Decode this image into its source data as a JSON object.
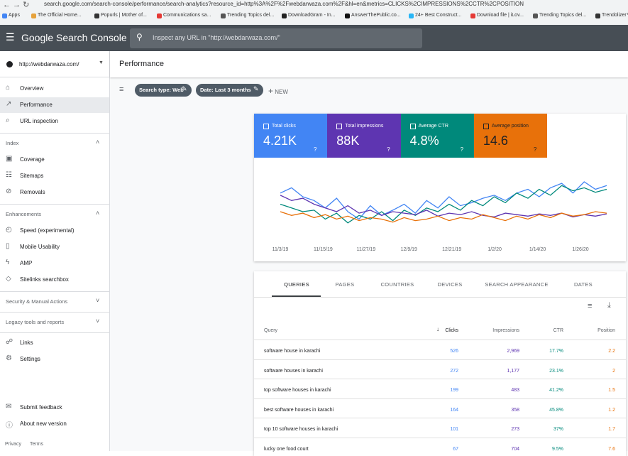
{
  "browser": {
    "url": "search.google.com/search-console/performance/search-analytics?resource_id=http%3A%2F%2Fwebdarwaza.com%2F&hl=en&metrics=CLICKS%2CIMPRESSIONS%2CCTR%2CPOSITION",
    "bookmarks": [
      "Apps",
      "The Official Home...",
      "Popurls | Mother of...",
      "Communications sa...",
      "Trending Topics del...",
      "DownloadGram - In...",
      "AnswerThePublic.co...",
      "24+ Best Construct...",
      "Download file | iLov...",
      "Trending Topics del...",
      "Trendolizer™"
    ]
  },
  "header": {
    "title": "Google Search Console",
    "search_placeholder": "Inspect any URL in \"http://webdarwaza.com/\""
  },
  "sidebar": {
    "property": "http://webdarwaza.com/",
    "groups": [
      {
        "items": [
          "Overview",
          "Performance",
          "URL inspection"
        ]
      },
      {
        "heading": "Index",
        "items": [
          "Coverage",
          "Sitemaps",
          "Removals"
        ]
      },
      {
        "heading": "Enhancements",
        "items": [
          "Speed (experimental)",
          "Mobile Usability",
          "AMP",
          "Sitelinks searchbox"
        ]
      },
      {
        "heading": "Security & Manual Actions",
        "items": []
      },
      {
        "heading": "Legacy tools and reports",
        "items": []
      },
      {
        "items": [
          "Links",
          "Settings"
        ]
      }
    ],
    "bottom_items": [
      "Submit feedback",
      "About new version"
    ],
    "footer": [
      "Privacy",
      "Terms"
    ]
  },
  "page_title": "Performance",
  "filters": [
    "Search type: Web",
    "Date: Last 3 months"
  ],
  "new_button": "NEW",
  "metrics": [
    {
      "label": "Total clicks",
      "value": "4.21K",
      "color": "#4285f4"
    },
    {
      "label": "Total impressions",
      "value": "88K",
      "color": "#5e35b1"
    },
    {
      "label": "Average CTR",
      "value": "4.8%",
      "color": "#00897b"
    },
    {
      "label": "Average position",
      "value": "14.6",
      "color": "#e8710a"
    }
  ],
  "chart_data": {
    "type": "line",
    "ylim": [
      0,
      100
    ],
    "xticks": [
      "11/3/19",
      "11/15/19",
      "11/27/19",
      "12/9/19",
      "12/21/19",
      "1/2/20",
      "1/14/20",
      "1/26/20"
    ],
    "series": [
      {
        "name": "Total clicks",
        "color": "#4285f4",
        "values": [
          65,
          72,
          60,
          55,
          45,
          58,
          40,
          30,
          48,
          35,
          42,
          50,
          38,
          55,
          45,
          60,
          48,
          52,
          58,
          62,
          55,
          65,
          70,
          60,
          72,
          78,
          65,
          80,
          70,
          75
        ]
      },
      {
        "name": "Average CTR",
        "color": "#00897b",
        "values": [
          50,
          45,
          40,
          42,
          30,
          38,
          25,
          35,
          30,
          40,
          28,
          42,
          35,
          45,
          40,
          50,
          42,
          55,
          48,
          60,
          52,
          65,
          58,
          70,
          62,
          75,
          68,
          72,
          66,
          70
        ]
      },
      {
        "name": "Total impressions",
        "color": "#5e35b1",
        "values": [
          62,
          55,
          58,
          50,
          45,
          40,
          48,
          38,
          42,
          35,
          40,
          38,
          36,
          42,
          34,
          38,
          36,
          40,
          35,
          33,
          38,
          36,
          34,
          37,
          35,
          38,
          33,
          36,
          34,
          37
        ]
      },
      {
        "name": "Average position",
        "color": "#e8710a",
        "values": [
          40,
          35,
          38,
          32,
          36,
          30,
          34,
          28,
          32,
          30,
          26,
          32,
          28,
          30,
          34,
          28,
          32,
          30,
          36,
          32,
          28,
          34,
          30,
          36,
          32,
          38,
          34,
          36,
          40,
          38
        ]
      }
    ]
  },
  "tabs": [
    "QUERIES",
    "PAGES",
    "COUNTRIES",
    "DEVICES",
    "SEARCH APPEARANCE",
    "DATES"
  ],
  "table": {
    "headers": [
      "Query",
      "Clicks",
      "Impressions",
      "CTR",
      "Position"
    ],
    "rows": [
      [
        "software house in karachi",
        "526",
        "2,969",
        "17.7%",
        "2.2"
      ],
      [
        "software houses in karachi",
        "272",
        "1,177",
        "23.1%",
        "2"
      ],
      [
        "top software houses in karachi",
        "199",
        "483",
        "41.2%",
        "1.5"
      ],
      [
        "best software houses in karachi",
        "164",
        "358",
        "45.8%",
        "1.2"
      ],
      [
        "top 10 software houses in karachi",
        "101",
        "273",
        "37%",
        "1.7"
      ],
      [
        "lucky one food court",
        "67",
        "704",
        "9.5%",
        "7.6"
      ]
    ]
  }
}
